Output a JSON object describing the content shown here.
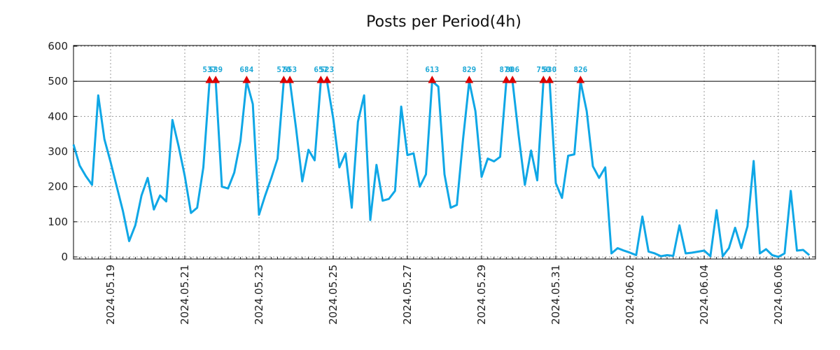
{
  "colors": {
    "line": "#0fa7e6",
    "marker": "#dd0000",
    "peak_label": "#1aa7d6",
    "threshold": "#000000"
  },
  "chart_data": {
    "type": "line",
    "title": "Posts per Period(4h)",
    "xlabel": "",
    "ylabel": "",
    "ylim": [
      0,
      600
    ],
    "yticks": [
      0,
      100,
      200,
      300,
      400,
      500,
      600
    ],
    "xlim": [
      0,
      120
    ],
    "x_ticks": [
      {
        "x": 6,
        "label": "2024.05.19"
      },
      {
        "x": 18,
        "label": "2024.05.21"
      },
      {
        "x": 30,
        "label": "2024.05.23"
      },
      {
        "x": 42,
        "label": "2024.05.25"
      },
      {
        "x": 54,
        "label": "2024.05.27"
      },
      {
        "x": 66,
        "label": "2024.05.29"
      },
      {
        "x": 78,
        "label": "2024.05.31"
      },
      {
        "x": 90,
        "label": "2024.06.02"
      },
      {
        "x": 102,
        "label": "2024.06.04"
      },
      {
        "x": 114,
        "label": "2024.06.06"
      }
    ],
    "grid": true,
    "threshold": 500,
    "series": [
      {
        "name": "posts",
        "values": [
          320,
          260,
          230,
          205,
          460,
          335,
          270,
          200,
          130,
          45,
          90,
          175,
          225,
          135,
          175,
          158,
          390,
          315,
          230,
          125,
          140,
          255,
          500,
          500,
          200,
          195,
          240,
          330,
          500,
          435,
          120,
          175,
          225,
          280,
          500,
          500,
          365,
          215,
          305,
          275,
          500,
          500,
          395,
          255,
          295,
          140,
          385,
          460,
          105,
          262,
          160,
          165,
          188,
          428,
          290,
          295,
          200,
          235,
          500,
          485,
          235,
          140,
          148,
          335,
          500,
          415,
          228,
          280,
          272,
          285,
          500,
          500,
          345,
          205,
          303,
          218,
          500,
          500,
          210,
          168,
          288,
          292,
          500,
          415,
          258,
          225,
          255,
          10,
          25,
          18,
          12,
          5,
          115,
          15,
          10,
          2,
          5,
          3,
          90,
          10,
          12,
          15,
          18,
          2,
          133,
          2,
          25,
          83,
          25,
          87,
          273,
          10,
          22,
          5,
          0,
          10,
          188,
          18,
          20,
          5
        ]
      }
    ],
    "peaks": [
      {
        "x": 22,
        "label": "537"
      },
      {
        "x": 23,
        "label": "539"
      },
      {
        "x": 28,
        "label": "684"
      },
      {
        "x": 34,
        "label": "570"
      },
      {
        "x": 35,
        "label": "553"
      },
      {
        "x": 40,
        "label": "657"
      },
      {
        "x": 41,
        "label": "523"
      },
      {
        "x": 58,
        "label": "613"
      },
      {
        "x": 64,
        "label": "829"
      },
      {
        "x": 70,
        "label": "870"
      },
      {
        "x": 71,
        "label": "806"
      },
      {
        "x": 76,
        "label": "750"
      },
      {
        "x": 77,
        "label": "530"
      },
      {
        "x": 82,
        "label": "826"
      }
    ]
  }
}
